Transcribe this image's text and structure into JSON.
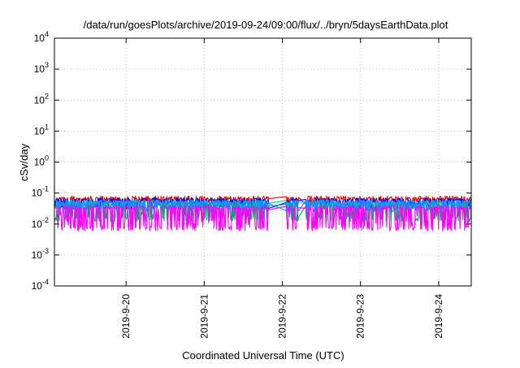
{
  "chart_data": {
    "type": "line",
    "title": "/data/run/goesPlots/archive/2019-09-24/09:00/flux/../bryn/5daysEarthData.plot",
    "xlabel": "Coordinated Universal Time (UTC)",
    "ylabel": "cSv/day",
    "yscale": "log",
    "ylim": [
      0.0001,
      10000
    ],
    "xlim": [
      "2019-09-19 02:00",
      "2019-09-24 10:00"
    ],
    "grid": true,
    "legend": "none",
    "y_ticks": [
      {
        "value": 0.0001,
        "base": "10",
        "exp": "-4"
      },
      {
        "value": 0.001,
        "base": "10",
        "exp": "-3"
      },
      {
        "value": 0.01,
        "base": "10",
        "exp": "-2"
      },
      {
        "value": 0.1,
        "base": "10",
        "exp": "-1"
      },
      {
        "value": 1,
        "base": "10",
        "exp": "0"
      },
      {
        "value": 10,
        "base": "10",
        "exp": "1"
      },
      {
        "value": 100,
        "base": "10",
        "exp": "2"
      },
      {
        "value": 1000,
        "base": "10",
        "exp": "3"
      },
      {
        "value": 10000,
        "base": "10",
        "exp": "4"
      }
    ],
    "x_ticks": [
      "2019-9-20",
      "2019-9-21",
      "2019-9-22",
      "2019-9-23",
      "2019-9-24"
    ],
    "data_gaps": [
      [
        "2019-09-21 20:00",
        "2019-09-22 01:00"
      ],
      [
        "2019-09-22 05:00",
        "2019-09-22 07:00"
      ]
    ],
    "series": [
      {
        "color": "#ff0000",
        "typical_min": 0.04,
        "typical_max": 0.08
      },
      {
        "color": "#0000ff",
        "typical_min": 0.03,
        "typical_max": 0.07
      },
      {
        "color": "#00aa66",
        "typical_min": 0.012,
        "typical_max": 0.05
      },
      {
        "color": "#00bcd4",
        "typical_min": 0.03,
        "typical_max": 0.06
      },
      {
        "color": "#1e88ff",
        "typical_min": 0.025,
        "typical_max": 0.06
      },
      {
        "color": "#ff00ff",
        "typical_min": 0.006,
        "typical_max": 0.04
      }
    ]
  }
}
